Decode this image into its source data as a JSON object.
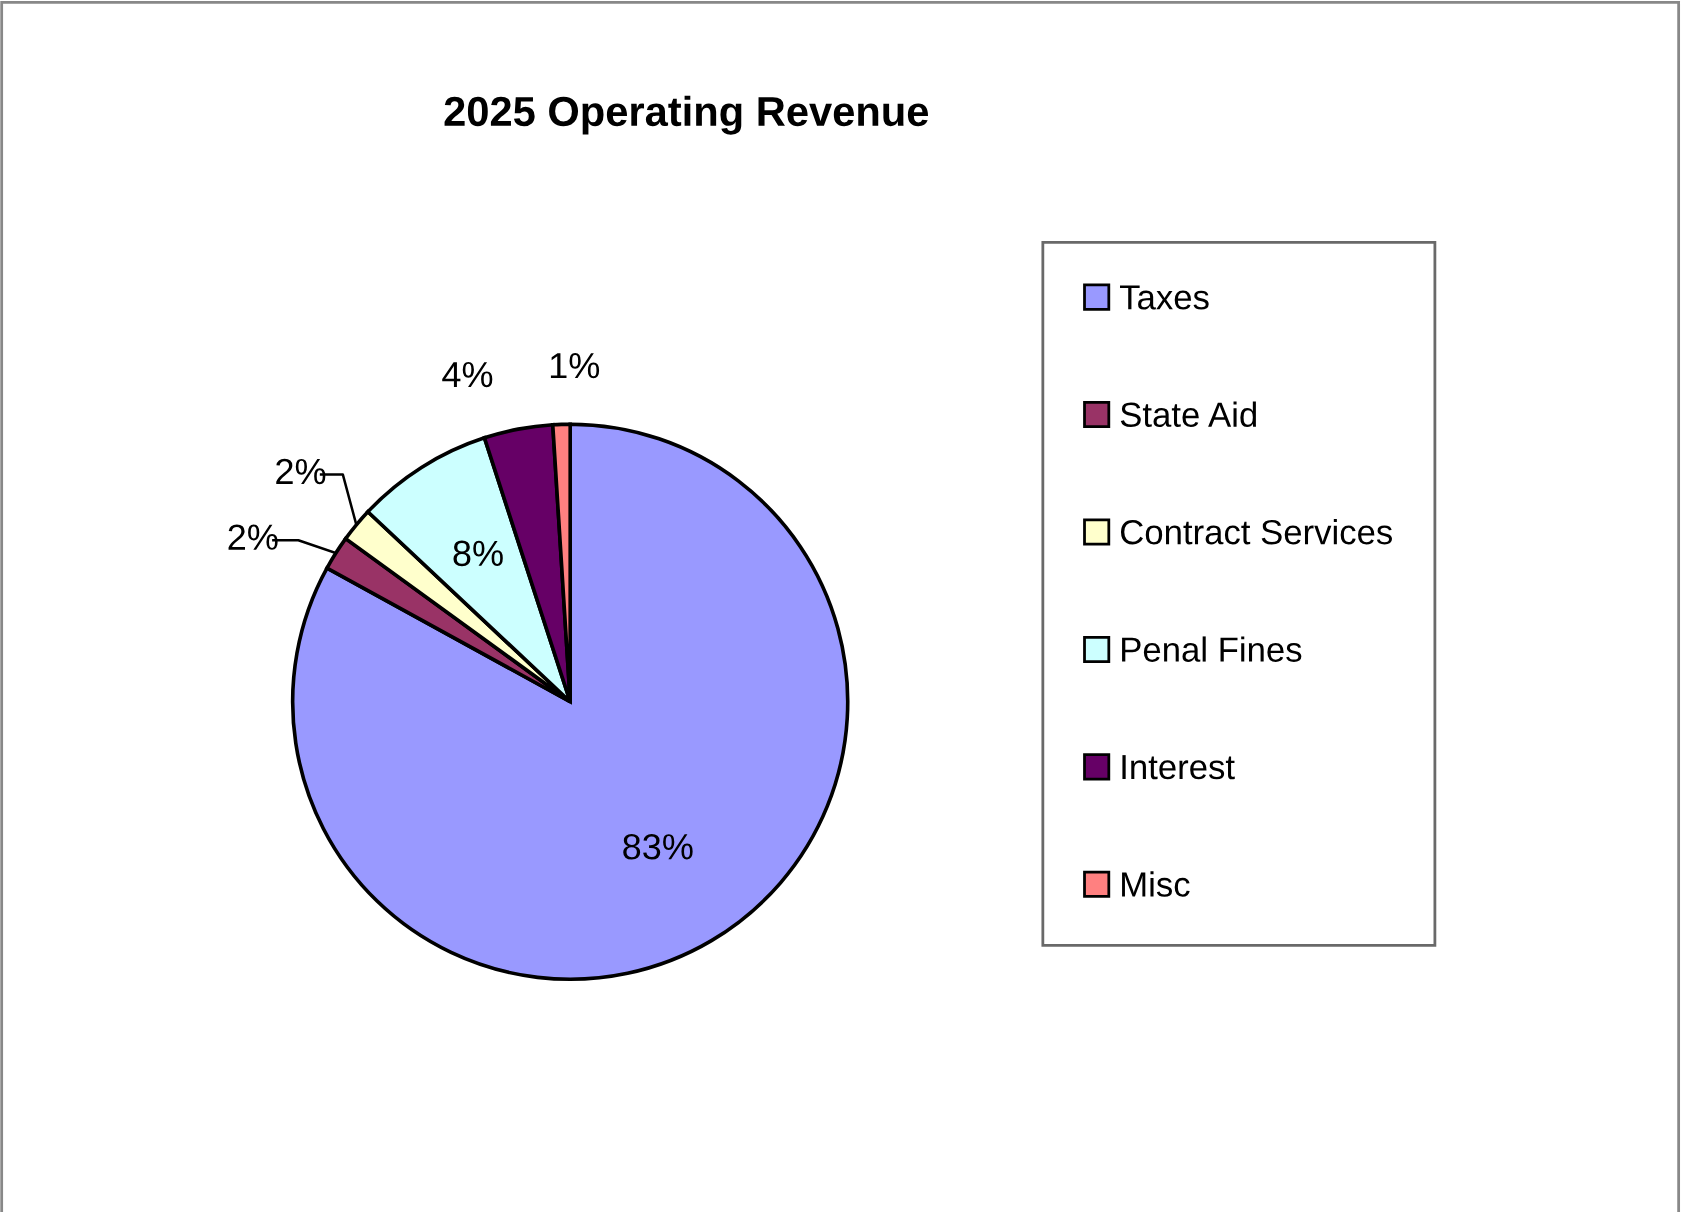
{
  "chart_data": {
    "type": "pie",
    "title": "2025 Operating Revenue",
    "categories": [
      "Taxes",
      "State Aid",
      "Contract Services",
      "Penal Fines",
      "Interest",
      "Misc"
    ],
    "values": [
      83,
      2,
      2,
      8,
      4,
      1
    ],
    "colors": [
      "#9999ff",
      "#993366",
      "#ffffcc",
      "#ccffff",
      "#660066",
      "#ff8080"
    ],
    "value_labels": [
      "83%",
      "2%",
      "2%",
      "8%",
      "4%",
      "1%"
    ],
    "legend": "right"
  }
}
